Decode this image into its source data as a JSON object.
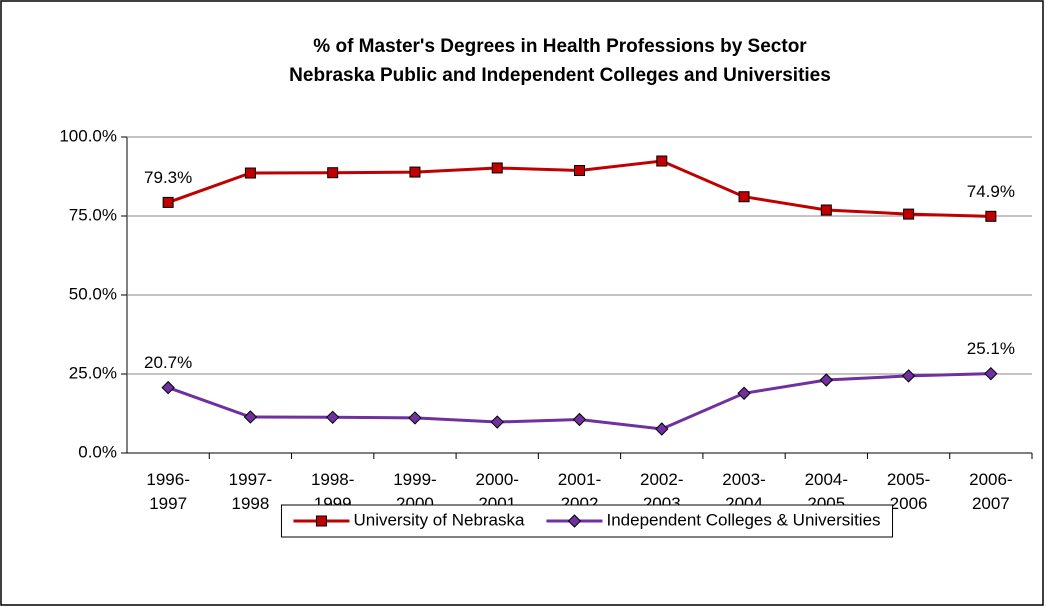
{
  "chart_data": {
    "type": "line",
    "title": "% of Master's Degrees in Health Professions by Sector",
    "subtitle": "Nebraska Public and Independent Colleges and Universities",
    "categories": [
      "1996-1997",
      "1997-1998",
      "1998-1999",
      "1999-2000",
      "2000-2001",
      "2001-2002",
      "2002-2003",
      "2003-2004",
      "2004-2005",
      "2005-2006",
      "2006-2007"
    ],
    "series": [
      {
        "name": "University of Nebraska",
        "color": "#c00000",
        "marker": "square",
        "values": [
          79.3,
          88.6,
          88.7,
          88.9,
          90.2,
          89.4,
          92.4,
          81.1,
          76.9,
          75.6,
          74.9
        ],
        "value_labels": [
          "79.3%",
          null,
          null,
          null,
          null,
          null,
          null,
          null,
          null,
          null,
          "74.9%"
        ]
      },
      {
        "name": "Independent Colleges & Universities",
        "color": "#7030a0",
        "marker": "diamond",
        "values": [
          20.7,
          11.4,
          11.3,
          11.1,
          9.8,
          10.6,
          7.6,
          18.9,
          23.1,
          24.4,
          25.1
        ],
        "value_labels": [
          "20.7%",
          null,
          null,
          null,
          null,
          null,
          null,
          null,
          null,
          null,
          "25.1%"
        ]
      }
    ],
    "ylim": [
      0,
      100
    ],
    "yticks": [
      {
        "value": 0,
        "label": "0.0%"
      },
      {
        "value": 25,
        "label": "25.0%"
      },
      {
        "value": 50,
        "label": "50.0%"
      },
      {
        "value": 75,
        "label": "75.0%"
      },
      {
        "value": 100,
        "label": "100.0%"
      }
    ],
    "grid": true,
    "legend": "bottom"
  }
}
